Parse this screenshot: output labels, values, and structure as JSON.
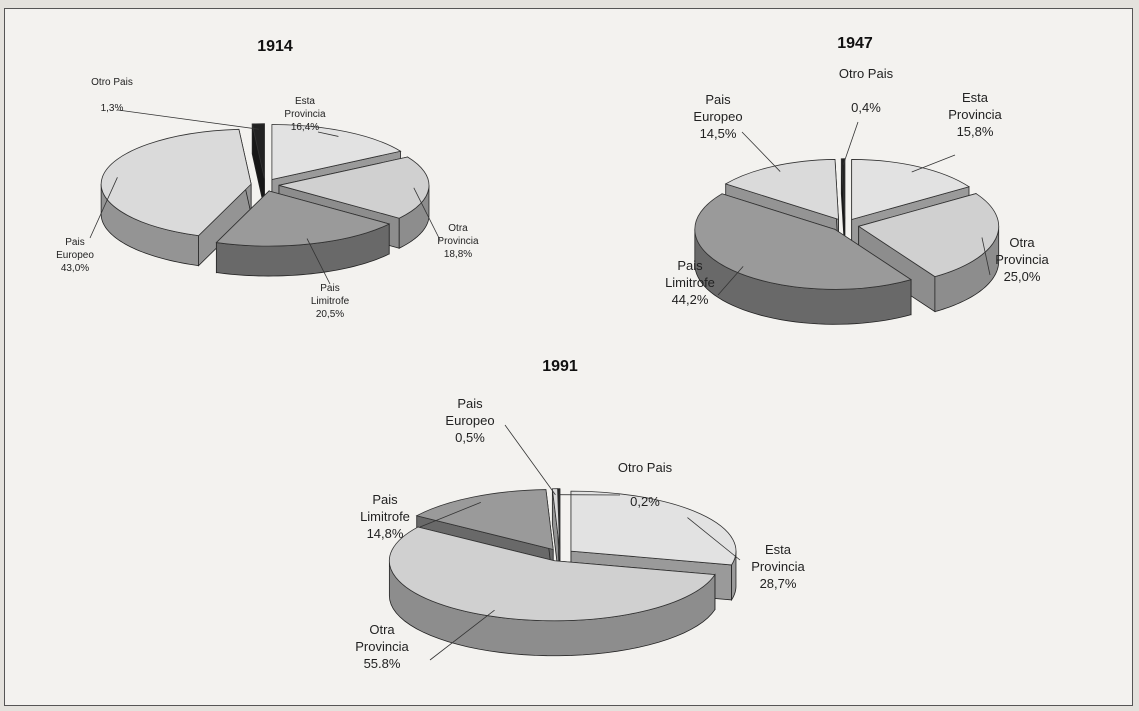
{
  "chart_data": [
    {
      "type": "pie",
      "title": "1914",
      "categories": [
        "Esta Provincia",
        "Otra Provincia",
        "Pais Limitrofe",
        "Pais Europeo",
        "Otro Pais"
      ],
      "values": [
        16.4,
        18.8,
        20.5,
        43.0,
        1.3
      ],
      "value_labels": [
        "16,4%",
        "18,8%",
        "20,5%",
        "43,0%",
        "1,3%"
      ],
      "colors": [
        "#e2e2e2",
        "#d0d0d0",
        "#9a9a9a",
        "#dadada",
        "#222222"
      ]
    },
    {
      "type": "pie",
      "title": "1947",
      "categories": [
        "Esta Provincia",
        "Otra Provincia",
        "Pais Limitrofe",
        "Pais Europeo",
        "Otro Pais"
      ],
      "values": [
        15.8,
        25.0,
        44.2,
        14.5,
        0.4
      ],
      "value_labels": [
        "15,8%",
        "25,0%",
        "44,2%",
        "14,5%",
        "0,4%"
      ],
      "colors": [
        "#e2e2e2",
        "#d0d0d0",
        "#9a9a9a",
        "#dadada",
        "#222222"
      ]
    },
    {
      "type": "pie",
      "title": "1991",
      "categories": [
        "Esta Provincia",
        "Otra Provincia",
        "Pais Limitrofe",
        "Pais Europeo",
        "Otro Pais"
      ],
      "values": [
        28.7,
        55.8,
        14.8,
        0.5,
        0.2
      ],
      "value_labels": [
        "28,7%",
        "55.8%",
        "14,8%",
        "0,5%",
        "0,2%"
      ],
      "colors": [
        "#e2e2e2",
        "#d0d0d0",
        "#9a9a9a",
        "#dadada",
        "#222222"
      ]
    }
  ]
}
